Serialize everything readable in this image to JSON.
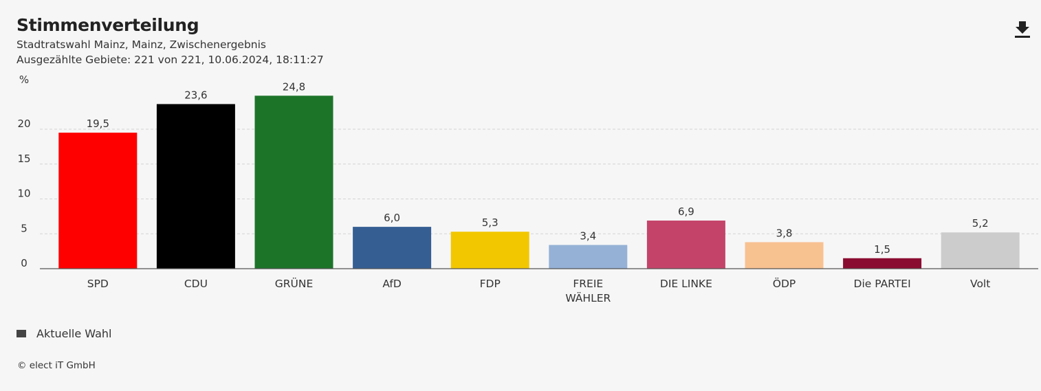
{
  "header": {
    "title": "Stimmenverteilung",
    "subtitle": "Stadtratswahl Mainz, Mainz, Zwischenergebnis",
    "status": "Ausgezählte Gebiete: 221 von 221, 10.06.2024, 18:11:27"
  },
  "toolbar": {
    "download_icon": "download-icon"
  },
  "chart_data": {
    "type": "bar",
    "title": "Stimmenverteilung",
    "ylabel": "%",
    "ylim": [
      0,
      25
    ],
    "yticks": [
      0,
      5,
      10,
      15,
      20
    ],
    "grid": true,
    "categories": [
      "SPD",
      "CDU",
      "GRÜNE",
      "AfD",
      "FDP",
      "FREIE WÄHLER",
      "DIE LINKE",
      "ÖDP",
      "Die PARTEI",
      "Volt"
    ],
    "values": [
      19.5,
      23.6,
      24.8,
      6.0,
      5.3,
      3.4,
      6.9,
      3.8,
      1.5,
      5.2
    ],
    "value_labels": [
      "19,5",
      "23,6",
      "24,8",
      "6,0",
      "5,3",
      "3,4",
      "6,9",
      "3,8",
      "1,5",
      "5,2"
    ],
    "colors": [
      "#ff0000",
      "#000000",
      "#1c7429",
      "#355f93",
      "#f2c700",
      "#95b1d6",
      "#c44469",
      "#f8c190",
      "#8b0c31",
      "#cccccc"
    ],
    "series": [
      {
        "name": "Aktuelle Wahl",
        "values": [
          19.5,
          23.6,
          24.8,
          6.0,
          5.3,
          3.4,
          6.9,
          3.8,
          1.5,
          5.2
        ]
      }
    ]
  },
  "legend": {
    "label": "Aktuelle Wahl",
    "color": "#444444"
  },
  "footer": {
    "credit": "© elect iT GmbH"
  }
}
